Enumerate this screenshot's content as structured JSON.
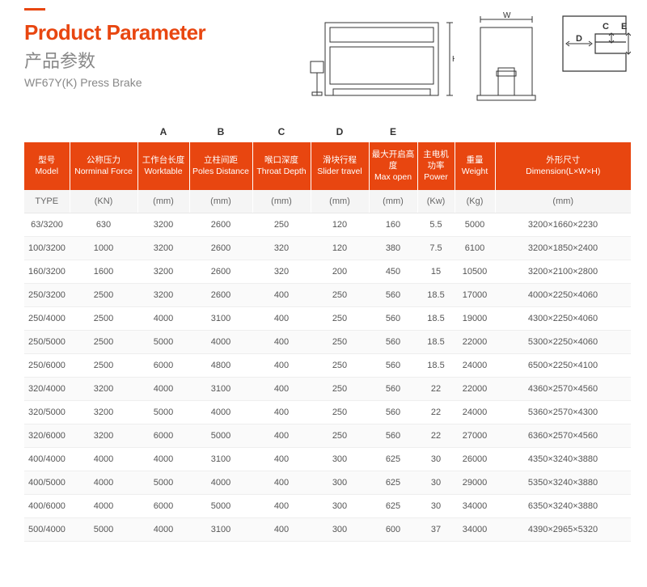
{
  "header": {
    "title_en": "Product Parameter",
    "title_cn": "产品参数",
    "subtitle": "WF67Y(K) Press Brake"
  },
  "diagram_labels": {
    "H": "H",
    "W": "W",
    "D": "D",
    "C": "C",
    "E": "E"
  },
  "letter_row": [
    "",
    "",
    "A",
    "B",
    "C",
    "D",
    "E",
    "",
    "",
    ""
  ],
  "columns": [
    {
      "cn": "型号",
      "en": "Model"
    },
    {
      "cn": "公称压力",
      "en": "Norminal Force"
    },
    {
      "cn": "工作台长度",
      "en": "Worktable"
    },
    {
      "cn": "立柱间距",
      "en": "Poles Distance"
    },
    {
      "cn": "喉口深度",
      "en": "Throat Depth"
    },
    {
      "cn": "滑块行程",
      "en": "Slider travel"
    },
    {
      "cn": "最大开启高度",
      "en": "Max open"
    },
    {
      "cn": "主电机功率",
      "en": "Power"
    },
    {
      "cn": "重量",
      "en": "Weight"
    },
    {
      "cn": "外形尺寸",
      "en": "Dimension(L×W×H)"
    }
  ],
  "units": [
    "TYPE",
    "(KN)",
    "(mm)",
    "(mm)",
    "(mm)",
    "(mm)",
    "(mm)",
    "(Kw)",
    "(Kg)",
    "(mm)"
  ],
  "rows": [
    [
      "63/3200",
      "630",
      "3200",
      "2600",
      "250",
      "120",
      "160",
      "5.5",
      "5000",
      "3200×1660×2230"
    ],
    [
      "100/3200",
      "1000",
      "3200",
      "2600",
      "320",
      "120",
      "380",
      "7.5",
      "6100",
      "3200×1850×2400"
    ],
    [
      "160/3200",
      "1600",
      "3200",
      "2600",
      "320",
      "200",
      "450",
      "15",
      "10500",
      "3200×2100×2800"
    ],
    [
      "250/3200",
      "2500",
      "3200",
      "2600",
      "400",
      "250",
      "560",
      "18.5",
      "17000",
      "4000×2250×4060"
    ],
    [
      "250/4000",
      "2500",
      "4000",
      "3100",
      "400",
      "250",
      "560",
      "18.5",
      "19000",
      "4300×2250×4060"
    ],
    [
      "250/5000",
      "2500",
      "5000",
      "4000",
      "400",
      "250",
      "560",
      "18.5",
      "22000",
      "5300×2250×4060"
    ],
    [
      "250/6000",
      "2500",
      "6000",
      "4800",
      "400",
      "250",
      "560",
      "18.5",
      "24000",
      "6500×2250×4100"
    ],
    [
      "320/4000",
      "3200",
      "4000",
      "3100",
      "400",
      "250",
      "560",
      "22",
      "22000",
      "4360×2570×4560"
    ],
    [
      "320/5000",
      "3200",
      "5000",
      "4000",
      "400",
      "250",
      "560",
      "22",
      "24000",
      "5360×2570×4300"
    ],
    [
      "320/6000",
      "3200",
      "6000",
      "5000",
      "400",
      "250",
      "560",
      "22",
      "27000",
      "6360×2570×4560"
    ],
    [
      "400/4000",
      "4000",
      "4000",
      "3100",
      "400",
      "300",
      "625",
      "30",
      "26000",
      "4350×3240×3880"
    ],
    [
      "400/5000",
      "4000",
      "5000",
      "4000",
      "400",
      "300",
      "625",
      "30",
      "29000",
      "5350×3240×3880"
    ],
    [
      "400/6000",
      "4000",
      "6000",
      "5000",
      "400",
      "300",
      "625",
      "30",
      "34000",
      "6350×3240×3880"
    ],
    [
      "500/4000",
      "5000",
      "4000",
      "3100",
      "400",
      "300",
      "600",
      "37",
      "34000",
      "4390×2965×5320"
    ]
  ],
  "colors": {
    "accent": "#e84610",
    "header_text": "#ffffff",
    "body_text": "#555555",
    "muted": "#888888",
    "row_alt": "#fafafa",
    "unit_bg": "#f5f5f5"
  }
}
